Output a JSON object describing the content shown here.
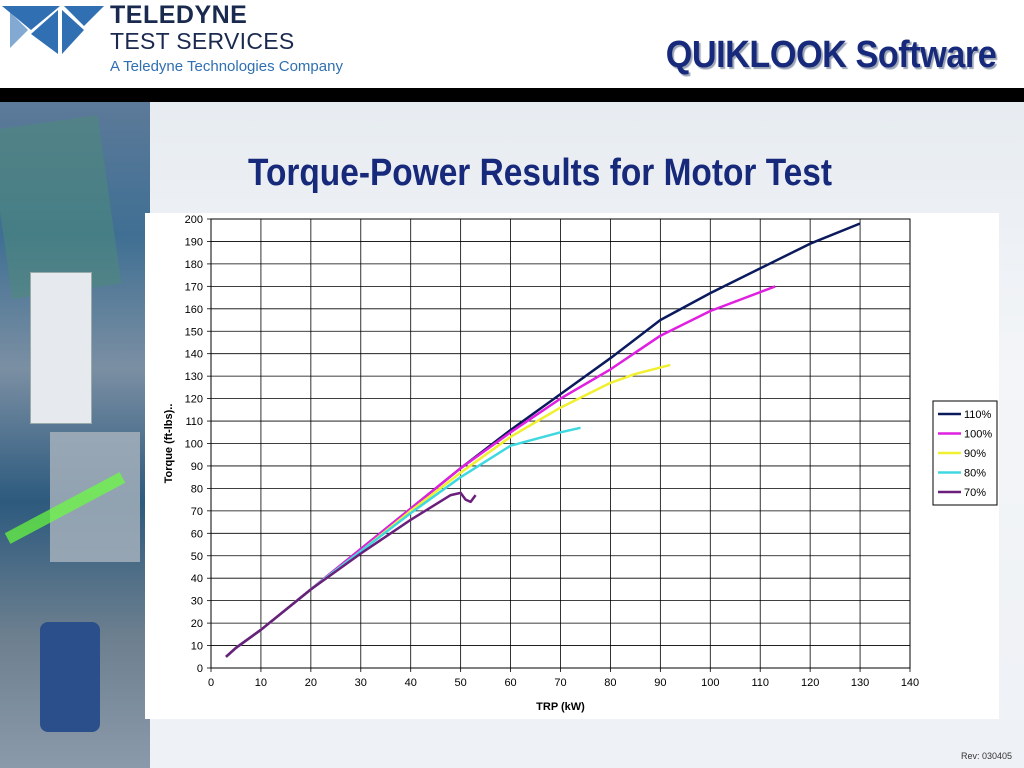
{
  "header": {
    "company_name": "TELEDYNE",
    "company_sub": "TEST SERVICES",
    "company_tag": "A Teledyne Technologies Company",
    "product_title": "QUIKLOOK Software",
    "brand_color": "#2f6fb2"
  },
  "slide_title": "Torque-Power Results for Motor Test",
  "footer": {
    "revision": "Rev: 030405"
  },
  "chart_data": {
    "type": "line",
    "title": "",
    "xlabel": "TRP (kW)",
    "ylabel": "Torque (ft-lbs)..",
    "xlim": [
      0,
      140
    ],
    "ylim": [
      0,
      200
    ],
    "xticks": [
      0,
      10,
      20,
      30,
      40,
      50,
      60,
      70,
      80,
      90,
      100,
      110,
      120,
      130,
      140
    ],
    "yticks": [
      0,
      10,
      20,
      30,
      40,
      50,
      60,
      70,
      80,
      90,
      100,
      110,
      120,
      130,
      140,
      150,
      160,
      170,
      180,
      190,
      200
    ],
    "grid": true,
    "legend_position": "right",
    "series": [
      {
        "name": "110%",
        "color": "#0a1a5c",
        "x": [
          3,
          5,
          10,
          20,
          30,
          40,
          50,
          60,
          70,
          80,
          90,
          100,
          110,
          120,
          130
        ],
        "y": [
          5,
          9,
          17,
          35,
          53,
          71,
          89,
          106,
          122,
          138,
          155,
          167,
          178,
          189,
          198
        ]
      },
      {
        "name": "100%",
        "color": "#e020e0",
        "x": [
          3,
          5,
          10,
          20,
          30,
          40,
          50,
          60,
          70,
          80,
          90,
          100,
          113
        ],
        "y": [
          5,
          9,
          17,
          35,
          53,
          71,
          89,
          105,
          120,
          133,
          148,
          159,
          170
        ]
      },
      {
        "name": "90%",
        "color": "#f0f030",
        "x": [
          3,
          5,
          10,
          20,
          30,
          40,
          50,
          60,
          70,
          80,
          85,
          92
        ],
        "y": [
          5,
          9,
          17,
          35,
          52,
          70,
          87,
          103,
          116,
          127,
          131,
          135
        ]
      },
      {
        "name": "80%",
        "color": "#40d8e0",
        "x": [
          3,
          5,
          10,
          20,
          30,
          40,
          50,
          60,
          70,
          74
        ],
        "y": [
          5,
          9,
          17,
          35,
          52,
          69,
          85,
          99,
          105,
          107
        ]
      },
      {
        "name": "70%",
        "color": "#6a1f7a",
        "x": [
          3,
          5,
          10,
          20,
          30,
          40,
          48,
          50,
          51,
          52,
          53
        ],
        "y": [
          5,
          9,
          17,
          35,
          51,
          66,
          77,
          78,
          75,
          74,
          77
        ]
      }
    ]
  }
}
